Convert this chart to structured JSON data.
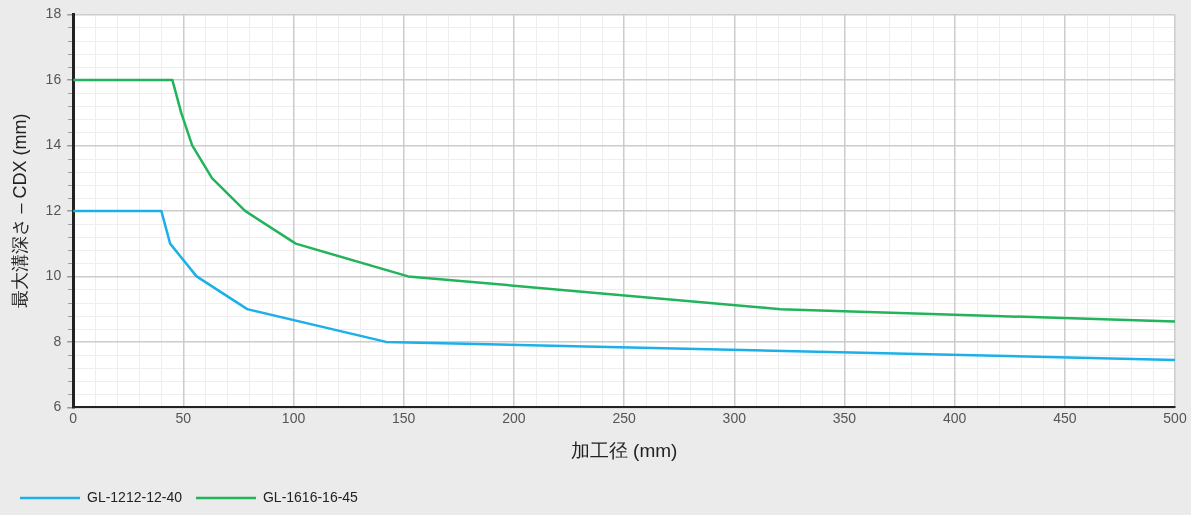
{
  "chart_data": {
    "type": "line",
    "xlabel": "加工径 (mm)",
    "ylabel": "最大溝深さ – CDX (mm)",
    "xlim": [
      0,
      500
    ],
    "xticks": [
      0,
      50,
      100,
      150,
      200,
      250,
      300,
      350,
      400,
      450,
      500
    ],
    "ylim": [
      6,
      18
    ],
    "yticks": [
      6,
      8,
      10,
      12,
      14,
      16,
      18
    ],
    "grid": true,
    "legend": "bottom",
    "marker": "none",
    "line_style": "solid",
    "series": [
      {
        "name": "GL-1212-12-40",
        "color": "#1cb0e8",
        "x": [
          0,
          40,
          44,
          56,
          79,
          142,
          500
        ],
        "values": [
          12,
          12,
          11,
          10,
          9,
          8,
          7.45
        ]
      },
      {
        "name": "GL-1616-16-45",
        "color": "#22b45a",
        "x": [
          0,
          45,
          49,
          54,
          63,
          78,
          101,
          152,
          321,
          500
        ],
        "values": [
          16,
          16,
          15,
          14,
          13,
          12,
          11,
          10,
          9,
          8.62
        ]
      }
    ]
  }
}
